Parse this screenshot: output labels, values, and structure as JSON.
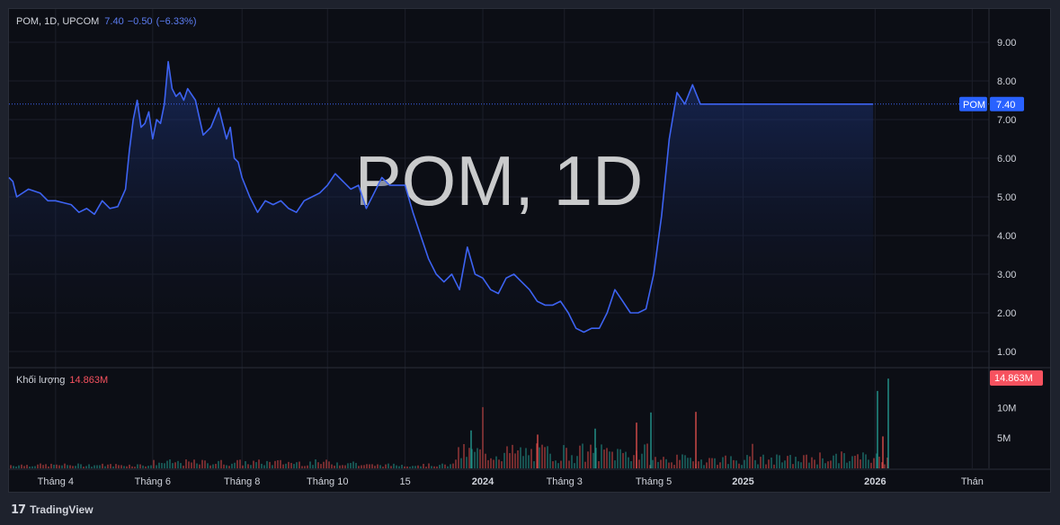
{
  "header": {
    "symbol_info": "POM, 1D, UPCOM",
    "last": "7.40",
    "change": "−0.50",
    "change_pct": "(−6.33%)"
  },
  "watermark": "POM, 1D",
  "price_tag": {
    "symbol": "POM",
    "value": "7.40"
  },
  "volume": {
    "label": "Khối lượng",
    "value": "14.863M",
    "tag": "14.863M"
  },
  "footer": {
    "brand": "TradingView",
    "logo": "𝟭𝟳"
  },
  "colors": {
    "line": "#3d63f2",
    "up": "#26a69a",
    "down": "#ef5350",
    "bg": "#0c0e15"
  },
  "chart_data": {
    "type": "line",
    "price_axis": {
      "ticks": [
        9,
        8,
        7,
        6,
        5,
        4,
        3,
        2,
        1
      ],
      "tick_labels": [
        "9.00",
        "8.00",
        "7.00",
        "6.00",
        "5.00",
        "4.00",
        "3.00",
        "2.00",
        "1.00"
      ]
    },
    "volume_axis": {
      "ticks": [
        10,
        5
      ],
      "tick_labels": [
        "10M",
        "5M"
      ]
    },
    "time_labels": [
      {
        "label": "Tháng 4",
        "t": 0.12
      },
      {
        "label": "Tháng 6",
        "t": 0.37
      },
      {
        "label": "Tháng 8",
        "t": 0.6
      },
      {
        "label": "Tháng 10",
        "t": 0.82
      },
      {
        "label": "15",
        "t": 1.02
      },
      {
        "label": "2024",
        "t": 1.22
      },
      {
        "label": "Tháng 3",
        "t": 1.43
      },
      {
        "label": "Tháng 5",
        "t": 1.66
      },
      {
        "label": "2025",
        "t": 1.89
      },
      {
        "label": "2026",
        "t": 2.23
      },
      {
        "label": "Thán",
        "t": 2.48
      }
    ],
    "series": [
      {
        "x": [
          0,
          0.01,
          0.02,
          0.05,
          0.08,
          0.1,
          0.12,
          0.14,
          0.16,
          0.18,
          0.2,
          0.22,
          0.24,
          0.26,
          0.28,
          0.3,
          0.31,
          0.32,
          0.33,
          0.34,
          0.35,
          0.36,
          0.37,
          0.38,
          0.39,
          0.4,
          0.41,
          0.42,
          0.43,
          0.44,
          0.45,
          0.46,
          0.48,
          0.5,
          0.52,
          0.54,
          0.55,
          0.56,
          0.57,
          0.58,
          0.59,
          0.6,
          0.62,
          0.64,
          0.66,
          0.68,
          0.7,
          0.72,
          0.74,
          0.76,
          0.78,
          0.8,
          0.82,
          0.84,
          0.86,
          0.88,
          0.9,
          0.92,
          0.94,
          0.96,
          0.98,
          1.0,
          1.02,
          1.04,
          1.06,
          1.08,
          1.1,
          1.12,
          1.14,
          1.16,
          1.18,
          1.2,
          1.22,
          1.24,
          1.26,
          1.28,
          1.3,
          1.32,
          1.34,
          1.36,
          1.38,
          1.4,
          1.42,
          1.44,
          1.46,
          1.48,
          1.5,
          1.52,
          1.54,
          1.56,
          1.58,
          1.6,
          1.62,
          1.64,
          1.66,
          1.68,
          1.7,
          1.72,
          1.74,
          1.76,
          1.78,
          1.8,
          1.82,
          1.84,
          1.86,
          1.88,
          1.9,
          1.92,
          1.94,
          1.96,
          1.98,
          2.0,
          2.02,
          2.04,
          2.06,
          2.08,
          2.1,
          2.12,
          2.14,
          2.16,
          2.18,
          2.2,
          2.21,
          2.22,
          2.225
        ],
        "values": [
          5.5,
          5.4,
          5.0,
          5.2,
          5.1,
          4.9,
          4.9,
          4.85,
          4.8,
          4.6,
          4.7,
          4.55,
          4.9,
          4.7,
          4.75,
          5.2,
          6.2,
          7.0,
          7.5,
          6.8,
          6.9,
          7.2,
          6.5,
          7.0,
          6.9,
          7.4,
          8.5,
          7.8,
          7.6,
          7.7,
          7.5,
          7.8,
          7.5,
          6.6,
          6.8,
          7.3,
          6.9,
          6.5,
          6.8,
          6.0,
          5.9,
          5.5,
          5.0,
          4.6,
          4.9,
          4.8,
          4.9,
          4.7,
          4.6,
          4.9,
          5.0,
          5.1,
          5.3,
          5.6,
          5.4,
          5.2,
          5.3,
          4.7,
          5.1,
          5.5,
          5.3,
          5.3,
          5.3,
          4.6,
          4.0,
          3.4,
          3.0,
          2.8,
          3.0,
          2.6,
          3.7,
          3.0,
          2.9,
          2.6,
          2.5,
          2.9,
          3.0,
          2.8,
          2.6,
          2.3,
          2.2,
          2.2,
          2.3,
          2.0,
          1.6,
          1.5,
          1.6,
          1.6,
          2.0,
          2.6,
          2.3,
          2.0,
          2.0,
          2.1,
          3.0,
          4.5,
          6.5,
          7.7,
          7.4,
          7.9,
          7.4,
          7.4,
          7.4,
          7.4,
          7.4,
          7.4,
          7.4,
          7.4,
          7.4,
          7.4,
          7.4,
          7.4,
          7.4,
          7.4,
          7.4,
          7.4,
          7.4,
          7.4,
          7.4,
          7.4,
          7.4,
          7.4,
          7.4,
          7.4,
          7.4
        ]
      }
    ]
  }
}
